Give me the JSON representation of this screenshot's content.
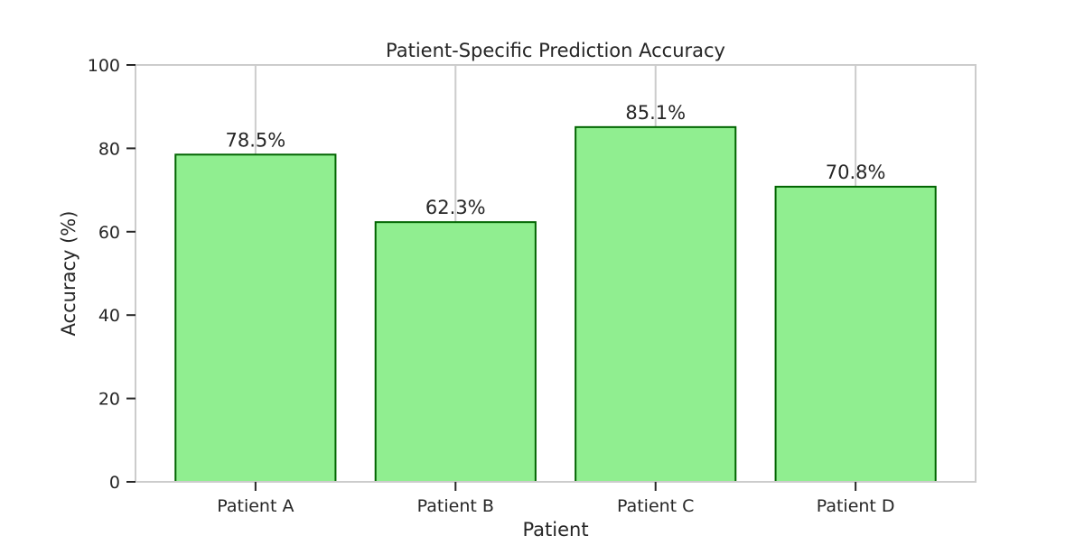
{
  "chart_data": {
    "type": "bar",
    "title": "Patient-Specific Prediction Accuracy",
    "xlabel": "Patient",
    "ylabel": "Accuracy (%)",
    "categories": [
      "Patient A",
      "Patient B",
      "Patient C",
      "Patient D"
    ],
    "values": [
      78.5,
      62.3,
      85.1,
      70.8
    ],
    "value_labels": [
      "78.5%",
      "62.3%",
      "85.1%",
      "70.8%"
    ],
    "ylim": [
      0,
      100
    ],
    "yticks": [
      0,
      20,
      40,
      60,
      80,
      100
    ],
    "ytick_labels": [
      "0",
      "20",
      "40",
      "60",
      "80",
      "100"
    ],
    "grid": "vertical",
    "legend": "none",
    "colors": {
      "bar_fill": "#90ee90",
      "bar_edge": "#006400",
      "grid": "#cccccc",
      "axes": "#cccccc",
      "ticks": "#262626",
      "text": "#262626"
    }
  }
}
